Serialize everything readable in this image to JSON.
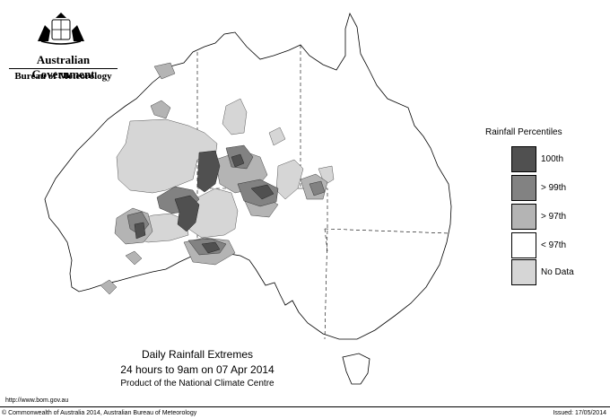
{
  "header": {
    "government": "Australian Government",
    "agency": "Bureau of Meteorology"
  },
  "map": {
    "region": "Australia",
    "shading_colors": {
      "100th": "#505050",
      "gt99": "#828282",
      "gt97": "#b4b4b4",
      "lt97": "#ffffff",
      "no_data": "#d6d6d6"
    }
  },
  "legend": {
    "title": "Rainfall Percentiles",
    "items": [
      {
        "label": "100th",
        "color": "#505050"
      },
      {
        "label": "> 99th",
        "color": "#828282"
      },
      {
        "label": "> 97th",
        "color": "#b4b4b4"
      },
      {
        "label": "< 97th",
        "color": "#ffffff"
      },
      {
        "label": "No Data",
        "color": "#d6d6d6"
      }
    ]
  },
  "caption": {
    "title": "Daily Rainfall Extremes",
    "subtitle": "24 hours to 9am on 07 Apr 2014",
    "product": "Product of the National Climate Centre"
  },
  "footer": {
    "url": "http://www.bom.gov.au",
    "copyright": "© Commonwealth of Australia 2014, Australian Bureau of Meteorology",
    "issued": "Issued: 17/05/2014"
  }
}
